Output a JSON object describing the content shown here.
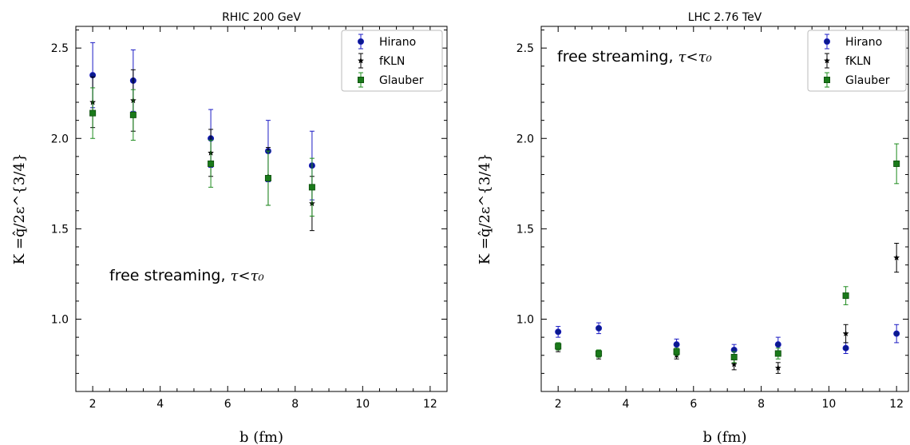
{
  "chart_data": [
    {
      "type": "scatter",
      "title": "RHIC 200 GeV",
      "xlabel": "b (fm)",
      "ylabel": "K =q̂/2ε^{3/4}",
      "xlim": [
        1.5,
        12.5
      ],
      "ylim": [
        0.6,
        2.62
      ],
      "xticks": [
        2,
        4,
        6,
        8,
        10,
        12
      ],
      "yticks": [
        1.0,
        1.5,
        2.0,
        2.5
      ],
      "xtick_labels": [
        "2",
        "4",
        "6",
        "8",
        "10",
        "12"
      ],
      "ytick_labels": [
        "1.0",
        "1.5",
        "2.0",
        "2.5"
      ],
      "legend_position": "top-right",
      "annotation": {
        "text": "free streaming, ",
        "math": "τ<τ₀"
      },
      "series": [
        {
          "name": "Hirano",
          "marker": "circle",
          "color": "#1c1cc4",
          "fill": "#0a1a8c",
          "x": [
            2.0,
            3.2,
            5.5,
            7.2,
            8.5
          ],
          "y": [
            2.35,
            2.32,
            2.0,
            1.93,
            1.85
          ],
          "yerr": [
            0.18,
            0.17,
            0.16,
            0.17,
            0.19
          ]
        },
        {
          "name": "fKLN",
          "marker": "star",
          "color": "#000000",
          "fill": "#000000",
          "x": [
            2.0,
            3.2,
            5.5,
            7.2,
            8.5
          ],
          "y": [
            2.2,
            2.21,
            1.92,
            1.79,
            1.64
          ],
          "yerr": [
            0.14,
            0.17,
            0.13,
            0.16,
            0.15
          ]
        },
        {
          "name": "Glauber",
          "marker": "square",
          "color": "#1e8c1e",
          "fill": "#1a7a1a",
          "x": [
            2.0,
            3.2,
            5.5,
            7.2,
            8.5
          ],
          "y": [
            2.14,
            2.13,
            1.86,
            1.78,
            1.73
          ],
          "yerr": [
            0.14,
            0.14,
            0.13,
            0.15,
            0.16
          ]
        }
      ]
    },
    {
      "type": "scatter",
      "title": "LHC 2.76 TeV",
      "xlabel": "b (fm)",
      "ylabel": "K =q̂/2ε^{3/4}",
      "xlim": [
        1.5,
        12.35
      ],
      "ylim": [
        0.6,
        2.62
      ],
      "xticks": [
        2,
        4,
        6,
        8,
        10,
        12
      ],
      "yticks": [
        1.0,
        1.5,
        2.0,
        2.5
      ],
      "xtick_labels": [
        "2",
        "4",
        "6",
        "8",
        "10",
        "12"
      ],
      "ytick_labels": [
        "1.0",
        "1.5",
        "2.0",
        "2.5"
      ],
      "legend_position": "top-right",
      "annotation": {
        "text": "free streaming, ",
        "math": "τ<τ₀"
      },
      "series": [
        {
          "name": "Hirano",
          "marker": "circle",
          "color": "#1c1cc4",
          "fill": "#0a1a8c",
          "x": [
            2.0,
            3.2,
            5.5,
            7.2,
            8.5,
            10.5,
            12.0
          ],
          "y": [
            0.93,
            0.95,
            0.86,
            0.83,
            0.86,
            0.84,
            0.92
          ],
          "yerr": [
            0.03,
            0.03,
            0.03,
            0.03,
            0.04,
            0.03,
            0.05
          ]
        },
        {
          "name": "fKLN",
          "marker": "star",
          "color": "#000000",
          "fill": "#000000",
          "x": [
            2.0,
            3.2,
            5.5,
            7.2,
            8.5,
            10.5,
            12.0
          ],
          "y": [
            0.84,
            0.8,
            0.8,
            0.75,
            0.73,
            0.92,
            1.34
          ],
          "yerr": [
            0.02,
            0.02,
            0.02,
            0.03,
            0.03,
            0.05,
            0.08
          ]
        },
        {
          "name": "Glauber",
          "marker": "square",
          "color": "#1e8c1e",
          "fill": "#1a7a1a",
          "x": [
            2.0,
            3.2,
            5.5,
            7.2,
            8.5,
            10.5,
            12.0
          ],
          "y": [
            0.85,
            0.81,
            0.82,
            0.79,
            0.81,
            1.13,
            1.86
          ],
          "yerr": [
            0.02,
            0.02,
            0.02,
            0.03,
            0.03,
            0.05,
            0.11
          ]
        }
      ]
    }
  ]
}
